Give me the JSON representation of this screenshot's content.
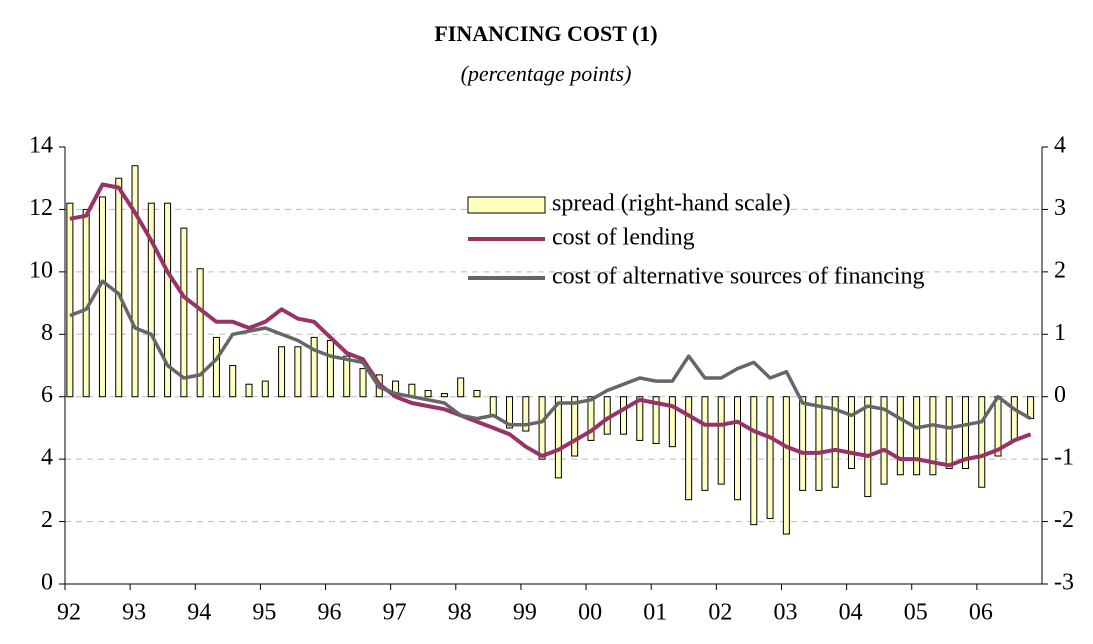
{
  "chart_data": {
    "type": "bar-line",
    "title": "FINANCING COST (1)",
    "subtitle": "(percentage points)",
    "categories": [
      "92",
      null,
      null,
      null,
      "93",
      null,
      null,
      null,
      "94",
      null,
      null,
      null,
      "95",
      null,
      null,
      null,
      "96",
      null,
      null,
      null,
      "97",
      null,
      null,
      null,
      "98",
      null,
      null,
      null,
      "99",
      null,
      null,
      null,
      "00",
      null,
      null,
      null,
      "01",
      null,
      null,
      null,
      "02",
      null,
      null,
      null,
      "03",
      null,
      null,
      null,
      "04",
      null,
      null,
      null,
      "05",
      null,
      null,
      null,
      "06",
      null,
      null,
      null
    ],
    "series": [
      {
        "name": "spread (right-hand scale)",
        "type": "bar",
        "axis": "y2",
        "color": "#ffffc0",
        "values": [
          3.1,
          3.0,
          3.2,
          3.5,
          3.7,
          3.1,
          3.1,
          2.7,
          2.05,
          0.95,
          0.5,
          0.2,
          0.25,
          0.8,
          0.8,
          0.95,
          0.9,
          0.65,
          0.45,
          0.35,
          0.25,
          0.2,
          0.1,
          0.05,
          0.3,
          0.1,
          -0.3,
          -0.5,
          -0.55,
          -1.0,
          -1.3,
          -0.95,
          -0.7,
          -0.6,
          -0.6,
          -0.7,
          -0.75,
          -0.8,
          -1.65,
          -1.5,
          -1.4,
          -1.65,
          -2.05,
          -1.95,
          -2.2,
          -1.5,
          -1.5,
          -1.45,
          -1.15,
          -1.6,
          -1.4,
          -1.25,
          -1.25,
          -1.25,
          -1.15,
          -1.15,
          -1.45,
          -0.95,
          -0.7,
          -0.35
        ]
      },
      {
        "name": "cost of lending",
        "type": "line",
        "color": "#993366",
        "values": [
          11.7,
          11.8,
          12.8,
          12.7,
          11.9,
          11.0,
          10.0,
          9.2,
          8.8,
          8.4,
          8.4,
          8.2,
          8.4,
          8.8,
          8.5,
          8.4,
          7.9,
          7.4,
          7.2,
          6.4,
          6.0,
          5.8,
          5.7,
          5.6,
          5.4,
          5.2,
          5.0,
          4.8,
          4.4,
          4.1,
          4.3,
          4.6,
          4.9,
          5.3,
          5.6,
          5.9,
          5.8,
          5.7,
          5.4,
          5.1,
          5.1,
          5.2,
          4.9,
          4.7,
          4.4,
          4.2,
          4.2,
          4.3,
          4.2,
          4.1,
          4.3,
          4.0,
          4.0,
          3.9,
          3.8,
          4.0,
          4.1,
          4.3,
          4.6,
          4.8
        ]
      },
      {
        "name": "cost of alternative sources of financing",
        "type": "line",
        "color": "#666666",
        "values": [
          8.6,
          8.8,
          9.7,
          9.3,
          8.2,
          8.0,
          7.0,
          6.6,
          6.7,
          7.2,
          8.0,
          8.1,
          8.2,
          8.0,
          7.8,
          7.5,
          7.3,
          7.2,
          7.1,
          6.3,
          6.1,
          6.0,
          5.9,
          5.8,
          5.4,
          5.3,
          5.4,
          5.1,
          5.1,
          5.2,
          5.8,
          5.8,
          5.9,
          6.2,
          6.4,
          6.6,
          6.5,
          6.5,
          7.3,
          6.6,
          6.6,
          6.9,
          7.1,
          6.6,
          6.8,
          5.8,
          5.7,
          5.6,
          5.4,
          5.7,
          5.6,
          5.3,
          5.0,
          5.1,
          5.0,
          5.1,
          5.2,
          6.0,
          5.6,
          5.3
        ]
      }
    ],
    "ylim": [
      0,
      14
    ],
    "yticks": [
      0,
      2,
      4,
      6,
      8,
      10,
      12,
      14
    ],
    "y2lim": [
      -3,
      4
    ],
    "y2ticks": [
      -3,
      -2,
      -1,
      0,
      1,
      2,
      3,
      4
    ],
    "grid": true,
    "legend": "top-right"
  }
}
